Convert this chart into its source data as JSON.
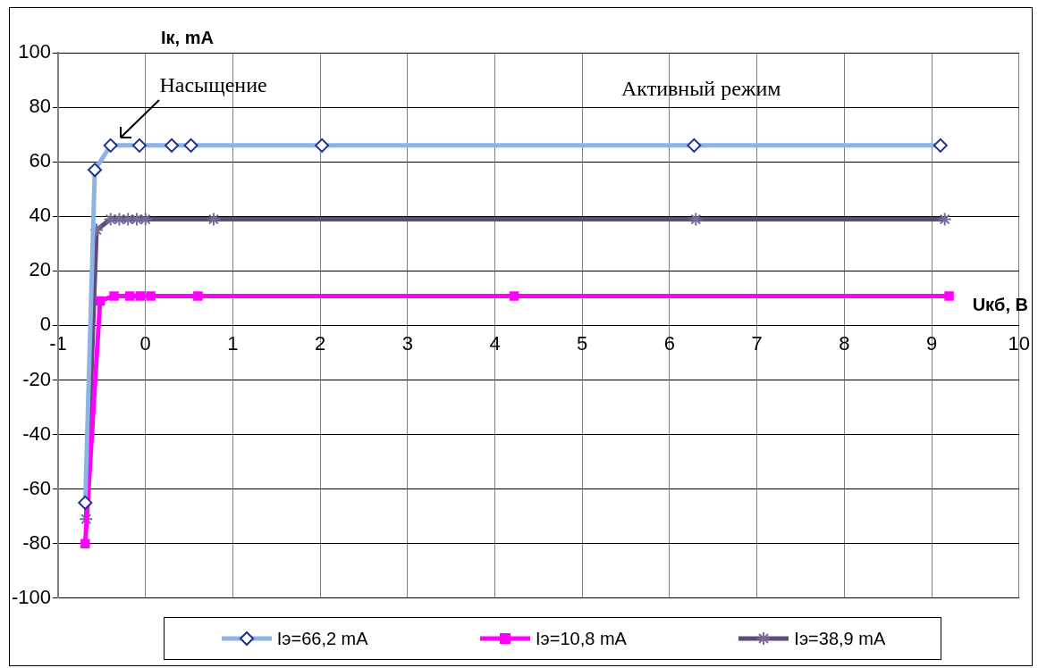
{
  "chart_data": {
    "type": "line",
    "xlabel": "Uкб, B",
    "ylabel": "Iк, mA",
    "xlim": [
      -1,
      10
    ],
    "xticks": [
      -1,
      0,
      1,
      2,
      3,
      4,
      5,
      6,
      7,
      8,
      9,
      10
    ],
    "ylim": [
      -100,
      100
    ],
    "yticks": [
      -100,
      -80,
      -60,
      -40,
      -20,
      0,
      20,
      40,
      60,
      80,
      100
    ],
    "grid": true,
    "legend": "bottom",
    "annotations": [
      {
        "text": "Насыщение",
        "x": -0.3,
        "y": 68
      },
      "Активный режим"
    ],
    "series": [
      {
        "name": "Iэ=66,2 mA",
        "color": "#8db4e2",
        "marker": "diamond",
        "x": [
          -0.69,
          -0.58,
          -0.4,
          -0.07,
          0.3,
          0.52,
          2.02,
          6.28,
          9.1
        ],
        "values": [
          -65,
          57,
          66,
          66,
          66,
          66,
          66,
          66,
          66
        ]
      },
      {
        "name": "Iэ=10,8 mA",
        "color": "#ff00ff",
        "marker": "square",
        "x": [
          -0.69,
          -0.52,
          -0.36,
          -0.18,
          -0.06,
          0.06,
          0.6,
          4.22,
          9.2
        ],
        "values": [
          -80,
          9,
          10.8,
          10.8,
          10.8,
          10.8,
          10.8,
          10.8,
          10.8
        ]
      },
      {
        "name": "Iэ=38,9 mA",
        "color": "#604a7b",
        "marker": "cross",
        "x": [
          -0.68,
          -0.56,
          -0.4,
          -0.3,
          -0.2,
          -0.1,
          0,
          0.78,
          6.3,
          9.15
        ],
        "values": [
          -71,
          35,
          38.9,
          38.9,
          38.9,
          38.9,
          38.9,
          38.9,
          38.9,
          38.9
        ]
      }
    ]
  }
}
